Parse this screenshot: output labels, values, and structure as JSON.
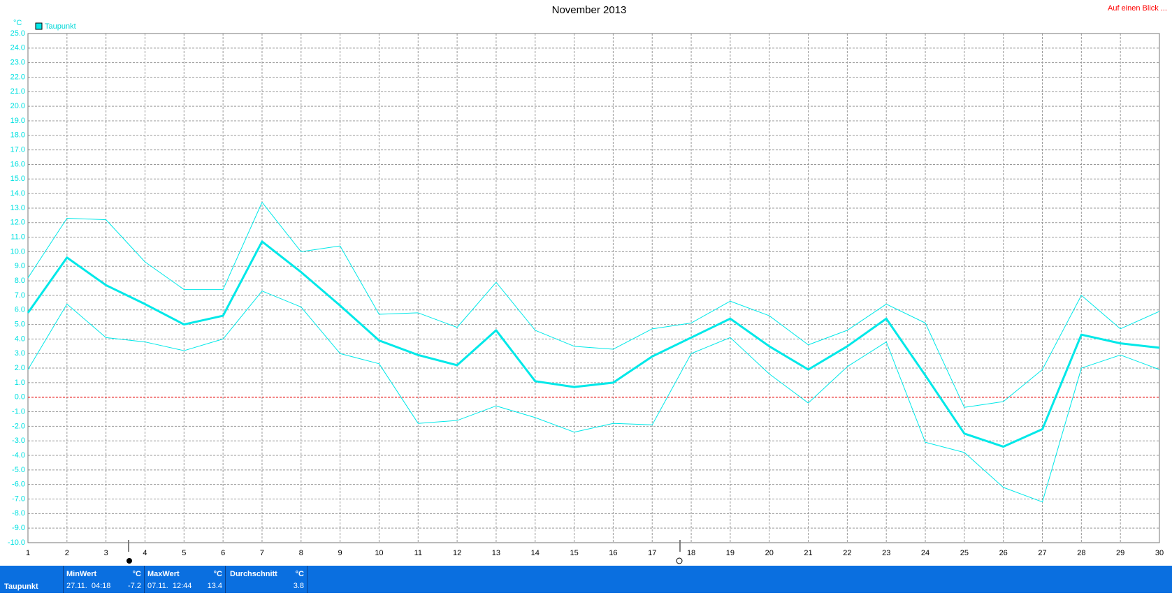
{
  "chart_data": {
    "type": "line",
    "title": "November 2013",
    "link": "Auf einen Blick ...",
    "y_unit": "°C",
    "legend": "Taupunkt",
    "legend_color": "#00e8e8",
    "x": [
      1,
      2,
      3,
      4,
      5,
      6,
      7,
      8,
      9,
      10,
      11,
      12,
      13,
      14,
      15,
      16,
      17,
      18,
      19,
      20,
      21,
      22,
      23,
      24,
      25,
      26,
      27,
      28,
      29,
      30
    ],
    "xlim": [
      1,
      30
    ],
    "xticks": [
      1,
      2,
      3,
      4,
      5,
      6,
      7,
      8,
      9,
      10,
      11,
      12,
      13,
      14,
      15,
      16,
      17,
      18,
      19,
      20,
      21,
      22,
      23,
      24,
      25,
      26,
      27,
      28,
      29,
      30
    ],
    "ylim": [
      -10,
      25
    ],
    "yticks": [
      {
        "value": -10,
        "label": "-10.0"
      },
      {
        "value": -9,
        "label": "-9.0"
      },
      {
        "value": -8,
        "label": "-8.0"
      },
      {
        "value": -7,
        "label": "-7.0"
      },
      {
        "value": -6,
        "label": "-6.0"
      },
      {
        "value": -5,
        "label": "-5.0"
      },
      {
        "value": -4,
        "label": "-4.0"
      },
      {
        "value": -3,
        "label": "-3.0"
      },
      {
        "value": -2,
        "label": "-2.0"
      },
      {
        "value": -1,
        "label": "-1.0"
      },
      {
        "value": 0,
        "label": "0.0"
      },
      {
        "value": 1,
        "label": "1.0"
      },
      {
        "value": 2,
        "label": "2.0"
      },
      {
        "value": 3,
        "label": "3.0"
      },
      {
        "value": 4,
        "label": "4.0"
      },
      {
        "value": 5,
        "label": "5.0"
      },
      {
        "value": 6,
        "label": "6.0"
      },
      {
        "value": 7,
        "label": "7.0"
      },
      {
        "value": 8,
        "label": "8.0"
      },
      {
        "value": 9,
        "label": "9.0"
      },
      {
        "value": 10,
        "label": "10.0"
      },
      {
        "value": 11,
        "label": "11.0"
      },
      {
        "value": 12,
        "label": "12.0"
      },
      {
        "value": 13,
        "label": "13.0"
      },
      {
        "value": 14,
        "label": "14.0"
      },
      {
        "value": 15,
        "label": "15.0"
      },
      {
        "value": 16,
        "label": "16.0"
      },
      {
        "value": 17,
        "label": "17.0"
      },
      {
        "value": 18,
        "label": "18.0"
      },
      {
        "value": 19,
        "label": "19.0"
      },
      {
        "value": 20,
        "label": "20.0"
      },
      {
        "value": 21,
        "label": "21.0"
      },
      {
        "value": 22,
        "label": "22.0"
      },
      {
        "value": 23,
        "label": "23.0"
      },
      {
        "value": 24,
        "label": "24.0"
      },
      {
        "value": 25,
        "label": "25.0"
      }
    ],
    "grid": true,
    "zero_line_color": "#ff0000",
    "series": [
      {
        "color": "#00e8e8",
        "width": 1,
        "values": [
          8.2,
          12.3,
          12.2,
          9.3,
          7.4,
          7.4,
          13.4,
          10.0,
          10.4,
          5.7,
          5.8,
          4.8,
          7.9,
          4.6,
          3.5,
          3.3,
          4.7,
          5.1,
          6.6,
          5.6,
          3.6,
          4.6,
          6.4,
          5.1,
          -0.7,
          -0.3,
          1.9,
          7.0,
          4.7,
          5.9
        ]
      },
      {
        "color": "#00e8e8",
        "width": 3,
        "values": [
          5.8,
          9.6,
          7.7,
          6.4,
          5.0,
          5.6,
          10.7,
          8.6,
          6.3,
          3.9,
          2.9,
          2.2,
          4.6,
          1.1,
          0.7,
          1.0,
          2.8,
          4.1,
          5.4,
          3.5,
          1.9,
          3.5,
          5.4,
          1.5,
          -2.5,
          -3.4,
          -2.2,
          4.3,
          3.7,
          3.4
        ]
      },
      {
        "color": "#00e8e8",
        "width": 1,
        "values": [
          1.9,
          6.4,
          4.1,
          3.8,
          3.2,
          4.0,
          7.3,
          6.2,
          3.0,
          2.3,
          -1.8,
          -1.6,
          -0.6,
          -1.4,
          -2.4,
          -1.8,
          -1.9,
          3.0,
          4.1,
          1.6,
          -0.4,
          2.1,
          3.8,
          -3.1,
          -3.8,
          -6.2,
          -7.2,
          2.0,
          2.9,
          1.9
        ]
      }
    ]
  },
  "footer": {
    "label": "Taupunkt",
    "columns": [
      {
        "header": "MinWert",
        "unit": "°C",
        "time": "27.11.  04:18",
        "value": -7.2
      },
      {
        "header": "MaxWert",
        "unit": "°C",
        "time": "07.11.  12:44",
        "value": 13.4
      },
      {
        "header": "Durchschnitt",
        "unit": "°C",
        "value": 3.8
      }
    ]
  }
}
